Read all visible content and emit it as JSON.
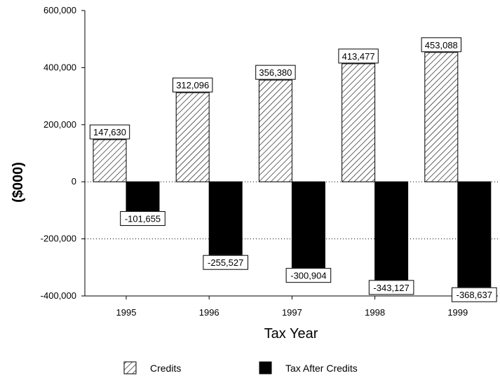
{
  "chart_data": {
    "type": "bar",
    "categories": [
      "1995",
      "1996",
      "1997",
      "1998",
      "1999"
    ],
    "series": [
      {
        "name": "Credits",
        "values": [
          147630,
          312096,
          356380,
          413477,
          453088
        ],
        "fill": "hatched",
        "color": "#000000"
      },
      {
        "name": "Tax After Credits",
        "values": [
          -101655,
          -255527,
          -300904,
          -343127,
          -368637
        ],
        "fill": "solid",
        "color": "#000000"
      }
    ],
    "data_labels": {
      "Credits": [
        "147,630",
        "312,096",
        "356,380",
        "413,477",
        "453,088"
      ],
      "Tax After Credits": [
        "-101,655",
        "-255,527",
        "-300,904",
        "-343,127",
        "-368,637"
      ]
    },
    "title": "",
    "xlabel": "Tax Year",
    "ylabel": "($000)",
    "ylim": [
      -400000,
      600000
    ],
    "yticks": [
      600000,
      400000,
      200000,
      0,
      -200000,
      -400000
    ],
    "ytick_labels": [
      "600,000",
      "400,000",
      "200,000",
      "0",
      "-200,000",
      "-400,000"
    ],
    "grid": {
      "dotted_lines_at": [
        0,
        -200000
      ]
    },
    "legend": {
      "placement": "bottom",
      "entries": [
        "Credits",
        "Tax After Credits"
      ]
    }
  }
}
